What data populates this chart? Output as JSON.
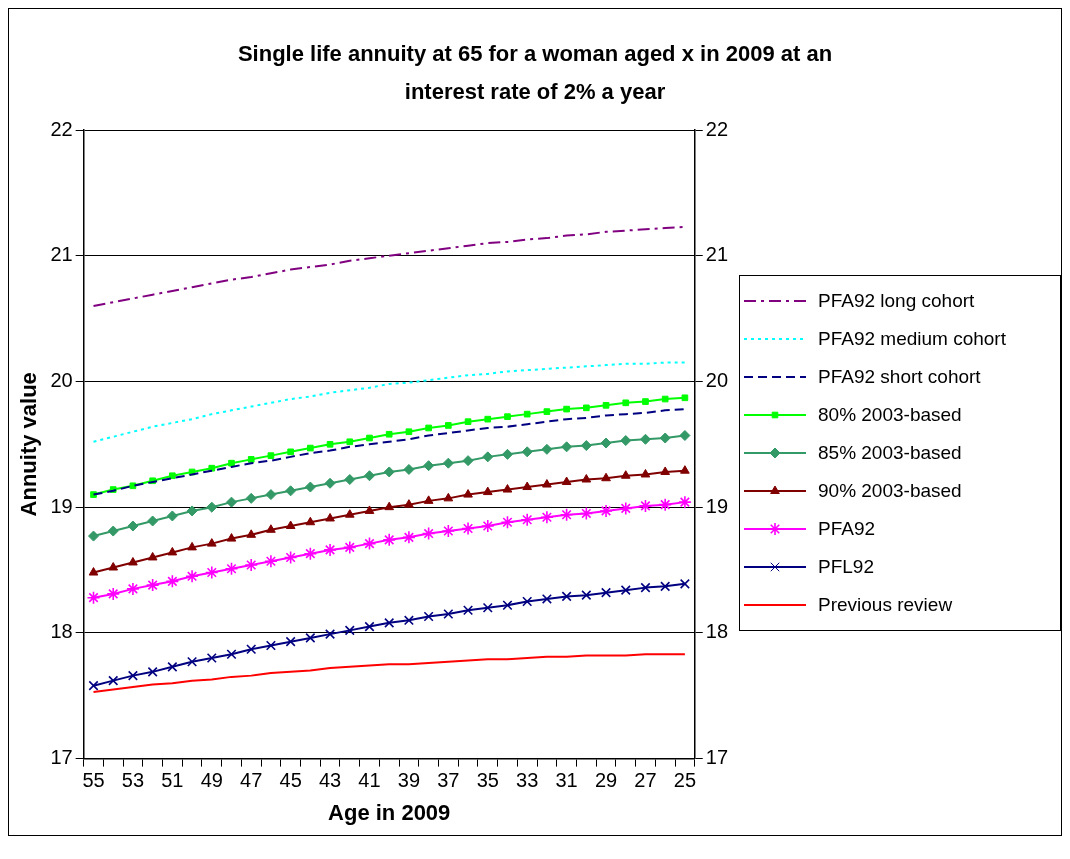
{
  "chart_data": {
    "type": "line",
    "title": "Single life annuity at 65 for a woman aged x in 2009 at an interest rate of 2% a year",
    "xlabel": "Age in 2009",
    "ylabel": "Annuity value",
    "categories": [
      "55",
      null,
      "53",
      null,
      "51",
      null,
      "49",
      null,
      "47",
      null,
      "45",
      null,
      "43",
      null,
      "41",
      null,
      "39",
      null,
      "37",
      null,
      "35",
      null,
      "33",
      null,
      "31",
      null,
      "29",
      null,
      "27",
      null,
      "25"
    ],
    "ylim": [
      17,
      22
    ],
    "yticks": [
      17,
      18,
      19,
      20,
      21,
      22
    ],
    "y2lim": [
      17,
      22
    ],
    "y2ticks": [
      17,
      18,
      19,
      20,
      21,
      22
    ],
    "grid": "y",
    "legend": "right",
    "series": [
      {
        "name": "PFA92 long cohort",
        "color": "#800080",
        "line_style": "dashdot",
        "marker": "none",
        "values": [
          20.6,
          20.63,
          20.66,
          20.69,
          20.72,
          20.75,
          20.78,
          20.81,
          20.83,
          20.86,
          20.89,
          20.91,
          20.93,
          20.96,
          20.98,
          21.0,
          21.02,
          21.04,
          21.06,
          21.08,
          21.1,
          21.11,
          21.13,
          21.14,
          21.16,
          21.17,
          21.19,
          21.2,
          21.21,
          21.22,
          21.23
        ]
      },
      {
        "name": "PFA92 medium cohort",
        "color": "#00ffff",
        "line_style": "dotted",
        "marker": "none",
        "values": [
          19.52,
          19.56,
          19.6,
          19.64,
          19.67,
          19.7,
          19.74,
          19.77,
          19.8,
          19.83,
          19.86,
          19.88,
          19.91,
          19.93,
          19.95,
          19.98,
          19.99,
          20.01,
          20.03,
          20.05,
          20.06,
          20.08,
          20.09,
          20.1,
          20.11,
          20.12,
          20.13,
          20.14,
          20.14,
          20.15,
          20.15
        ]
      },
      {
        "name": "PFA92 short cohort",
        "color": "#000080",
        "line_style": "dashed",
        "marker": "none",
        "values": [
          19.1,
          19.13,
          19.17,
          19.2,
          19.23,
          19.26,
          19.29,
          19.32,
          19.35,
          19.37,
          19.4,
          19.43,
          19.45,
          19.48,
          19.5,
          19.52,
          19.54,
          19.57,
          19.59,
          19.61,
          19.63,
          19.64,
          19.66,
          19.68,
          19.7,
          19.71,
          19.73,
          19.74,
          19.75,
          19.77,
          19.78
        ]
      },
      {
        "name": "80% 2003-based",
        "color": "#00ff00",
        "line_style": "solid",
        "marker": "square",
        "values": [
          19.1,
          19.14,
          19.17,
          19.21,
          19.25,
          19.28,
          19.31,
          19.35,
          19.38,
          19.41,
          19.44,
          19.47,
          19.5,
          19.52,
          19.55,
          19.58,
          19.6,
          19.63,
          19.65,
          19.68,
          19.7,
          19.72,
          19.74,
          19.76,
          19.78,
          19.79,
          19.81,
          19.83,
          19.84,
          19.86,
          19.87
        ]
      },
      {
        "name": "85% 2003-based",
        "color": "#339966",
        "line_style": "solid",
        "marker": "diamond",
        "values": [
          18.77,
          18.81,
          18.85,
          18.89,
          18.93,
          18.97,
          19.0,
          19.04,
          19.07,
          19.1,
          19.13,
          19.16,
          19.19,
          19.22,
          19.25,
          19.28,
          19.3,
          19.33,
          19.35,
          19.37,
          19.4,
          19.42,
          19.44,
          19.46,
          19.48,
          19.49,
          19.51,
          19.53,
          19.54,
          19.55,
          19.57
        ]
      },
      {
        "name": "90% 2003-based",
        "color": "#800000",
        "line_style": "solid",
        "marker": "triangle",
        "values": [
          18.48,
          18.52,
          18.56,
          18.6,
          18.64,
          18.68,
          18.71,
          18.75,
          18.78,
          18.82,
          18.85,
          18.88,
          18.91,
          18.94,
          18.97,
          19.0,
          19.02,
          19.05,
          19.07,
          19.1,
          19.12,
          19.14,
          19.16,
          19.18,
          19.2,
          19.22,
          19.23,
          19.25,
          19.26,
          19.28,
          19.29
        ]
      },
      {
        "name": "PFA92",
        "color": "#ff00ff",
        "line_style": "solid",
        "marker": "star",
        "values": [
          18.28,
          18.31,
          18.35,
          18.38,
          18.41,
          18.45,
          18.48,
          18.51,
          18.54,
          18.57,
          18.6,
          18.63,
          18.66,
          18.68,
          18.71,
          18.74,
          18.76,
          18.79,
          18.81,
          18.83,
          18.85,
          18.88,
          18.9,
          18.92,
          18.94,
          18.95,
          18.97,
          18.99,
          19.01,
          19.02,
          19.04
        ]
      },
      {
        "name": "PFL92",
        "color": "#000080",
        "line_style": "solid",
        "marker": "cross",
        "values": [
          17.58,
          17.62,
          17.66,
          17.69,
          17.73,
          17.77,
          17.8,
          17.83,
          17.87,
          17.9,
          17.93,
          17.96,
          17.99,
          18.02,
          18.05,
          18.08,
          18.1,
          18.13,
          18.15,
          18.18,
          18.2,
          18.22,
          18.25,
          18.27,
          18.29,
          18.3,
          18.32,
          18.34,
          18.36,
          18.37,
          18.39
        ]
      },
      {
        "name": "Previous review",
        "color": "#ff0000",
        "line_style": "solid",
        "marker": "none",
        "values": [
          17.53,
          17.55,
          17.57,
          17.59,
          17.6,
          17.62,
          17.63,
          17.65,
          17.66,
          17.68,
          17.69,
          17.7,
          17.72,
          17.73,
          17.74,
          17.75,
          17.75,
          17.76,
          17.77,
          17.78,
          17.79,
          17.79,
          17.8,
          17.81,
          17.81,
          17.82,
          17.82,
          17.82,
          17.83,
          17.83,
          17.83
        ]
      }
    ]
  }
}
